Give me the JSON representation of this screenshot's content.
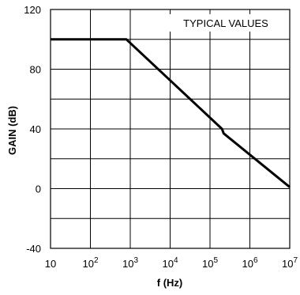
{
  "chart_data": {
    "type": "line",
    "title": "",
    "xlabel": "f (Hz)",
    "ylabel": "GAIN (dB)",
    "x_scale": "log",
    "xlim": [
      10,
      10000000
    ],
    "ylim": [
      -40,
      120
    ],
    "grid": true,
    "annotation": "TYPICAL VALUES",
    "x_ticks": [
      {
        "value": 10,
        "base": "10",
        "exp": ""
      },
      {
        "value": 100,
        "base": "10",
        "exp": "2"
      },
      {
        "value": 1000,
        "base": "10",
        "exp": "3"
      },
      {
        "value": 10000,
        "base": "10",
        "exp": "4"
      },
      {
        "value": 100000,
        "base": "10",
        "exp": "5"
      },
      {
        "value": 1000000,
        "base": "10",
        "exp": "6"
      },
      {
        "value": 10000000,
        "base": "10",
        "exp": "7"
      }
    ],
    "y_ticks": [
      -40,
      0,
      40,
      80,
      120
    ],
    "y_grid": [
      -40,
      -20,
      0,
      20,
      40,
      60,
      80,
      100,
      120
    ],
    "series": [
      {
        "x": [
          10,
          800,
          200000,
          220000,
          10000000
        ],
        "y": [
          100,
          100,
          40,
          37,
          1
        ]
      }
    ]
  }
}
